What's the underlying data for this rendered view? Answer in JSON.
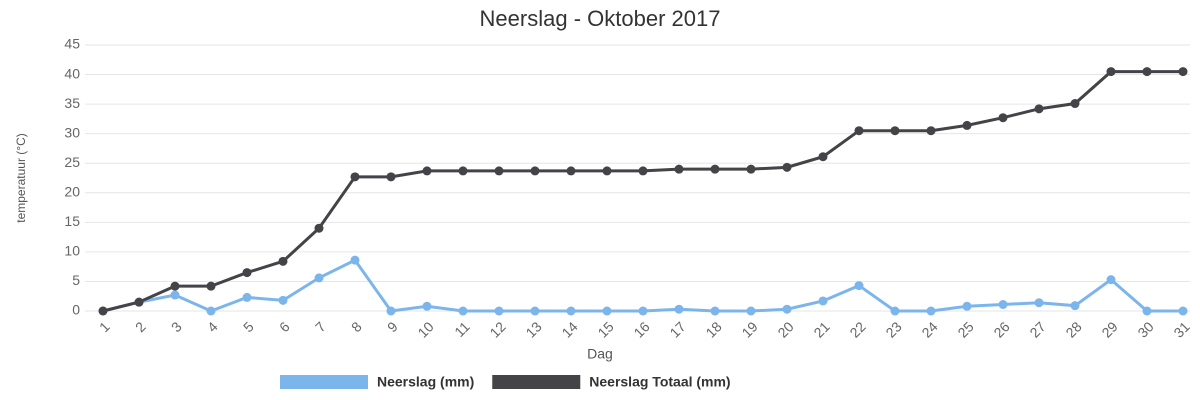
{
  "chart_data": {
    "type": "line",
    "title": "Neerslag - Oktober 2017",
    "x_label": "Dag",
    "y_label": "temperatuur (°C)",
    "categories": [
      "1",
      "2",
      "3",
      "4",
      "5",
      "6",
      "7",
      "8",
      "9",
      "10",
      "11",
      "12",
      "13",
      "14",
      "15",
      "16",
      "17",
      "18",
      "19",
      "20",
      "21",
      "22",
      "23",
      "24",
      "25",
      "26",
      "27",
      "28",
      "29",
      "30",
      "31"
    ],
    "series": [
      {
        "name": "Neerslag (mm)",
        "color": "#7cb5ec",
        "values": [
          0,
          1.5,
          2.7,
          0,
          2.3,
          1.8,
          5.6,
          8.6,
          0,
          0.8,
          0,
          0,
          0,
          0,
          0,
          0,
          0.3,
          0,
          0,
          0.3,
          1.7,
          4.3,
          0,
          0,
          0.8,
          1.1,
          1.4,
          0.9,
          5.3,
          0,
          0
        ]
      },
      {
        "name": "Neerslag Totaal (mm)",
        "color": "#434348",
        "values": [
          0,
          1.5,
          4.2,
          4.2,
          6.5,
          8.4,
          14.0,
          22.7,
          22.7,
          23.7,
          23.7,
          23.7,
          23.7,
          23.7,
          23.7,
          23.7,
          24.0,
          24.0,
          24.0,
          24.3,
          26.1,
          30.5,
          30.5,
          30.5,
          31.4,
          32.7,
          34.2,
          35.1,
          40.5,
          40.5,
          40.5
        ]
      }
    ],
    "ylim": [
      0,
      45
    ],
    "yticks": [
      0,
      5,
      10,
      15,
      20,
      25,
      30,
      35,
      40,
      45
    ],
    "grid": true,
    "legend": "bottom"
  }
}
